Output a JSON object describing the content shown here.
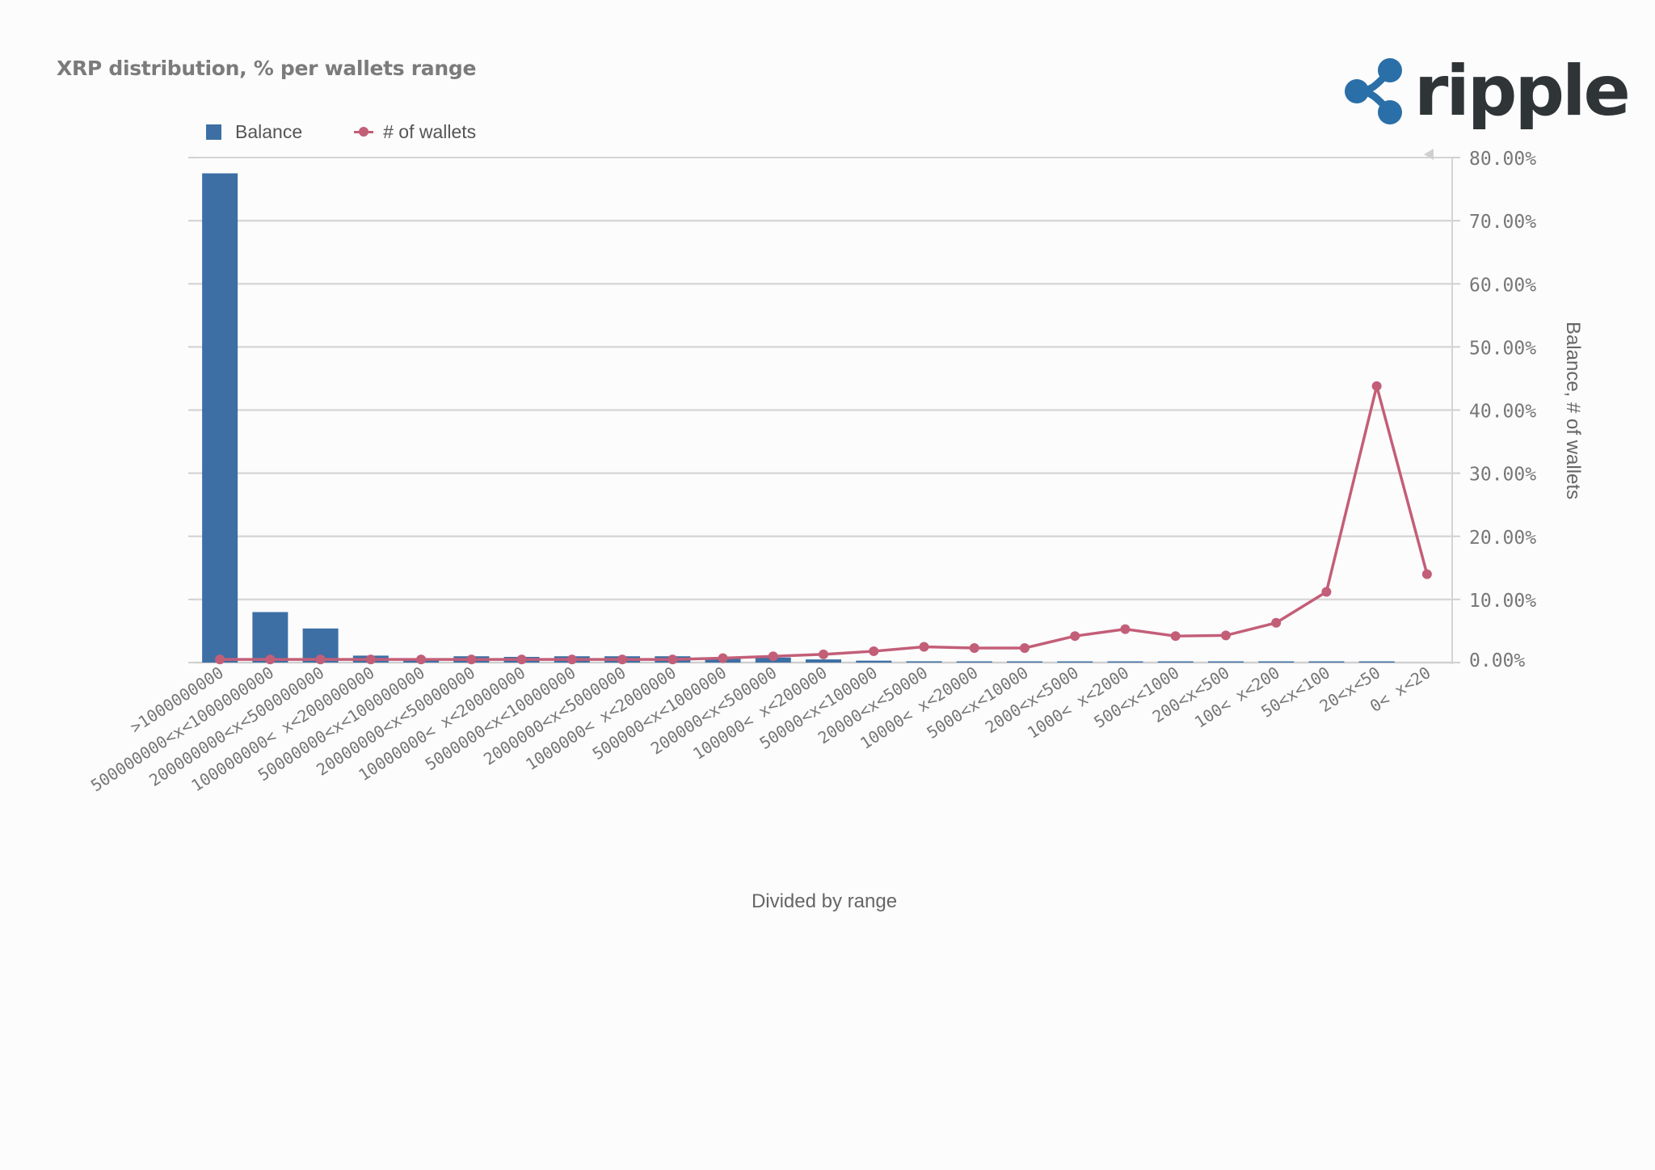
{
  "title": "XRP distribution, % per wallets range",
  "logo": {
    "text": "ripple",
    "icon": "ripple-logo-icon",
    "color": "#2a6fa8"
  },
  "chart_data": {
    "type": "bar",
    "xlabel": "Divided by range",
    "ylabel": "Balance, # of wallets",
    "ylim": [
      0,
      80
    ],
    "y_ticks": [
      "0.00%",
      "10.00%",
      "20.00%",
      "30.00%",
      "40.00%",
      "50.00%",
      "60.00%",
      "70.00%",
      "80.00%"
    ],
    "y_tick_values": [
      0,
      10,
      20,
      30,
      40,
      50,
      60,
      70,
      80
    ],
    "y_axis_side": "right",
    "grid": true,
    "legend_position": "top-left",
    "categories": [
      ">1000000000",
      "500000000<x<1000000000",
      "200000000<x<500000000",
      "100000000< x<200000000",
      "50000000<x<100000000",
      "20000000<x<50000000",
      "10000000< x<20000000",
      "5000000<x<10000000",
      "2000000<x<5000000",
      "1000000< x<2000000",
      "500000<x<1000000",
      "200000<x<500000",
      "100000< x<200000",
      "50000<x<100000",
      "20000<x<50000",
      "10000< x<20000",
      "5000<x<10000",
      "2000<x<5000",
      "1000< x<2000",
      "500<x<1000",
      "200<x<500",
      "100< x<200",
      "50<x<100",
      "20<x<50",
      "0< x<20"
    ],
    "series": [
      {
        "name": "Balance",
        "kind": "bar",
        "color": "#3d6fa5",
        "values": [
          77.5,
          8.0,
          5.4,
          1.1,
          0.5,
          1.0,
          0.9,
          1.0,
          1.0,
          1.0,
          0.6,
          0.8,
          0.5,
          0.3,
          0.2,
          0.1,
          0.1,
          0.05,
          0.03,
          0.02,
          0.02,
          0.01,
          0.01,
          0.01,
          0.0
        ]
      },
      {
        "name": "# of wallets",
        "kind": "line",
        "color": "#c35e78",
        "values": [
          0.5,
          0.5,
          0.5,
          0.5,
          0.5,
          0.5,
          0.5,
          0.5,
          0.5,
          0.5,
          0.7,
          1.0,
          1.3,
          1.8,
          2.5,
          2.3,
          2.3,
          4.2,
          5.3,
          4.2,
          4.3,
          6.3,
          11.2,
          43.8,
          14.0
        ]
      }
    ]
  }
}
